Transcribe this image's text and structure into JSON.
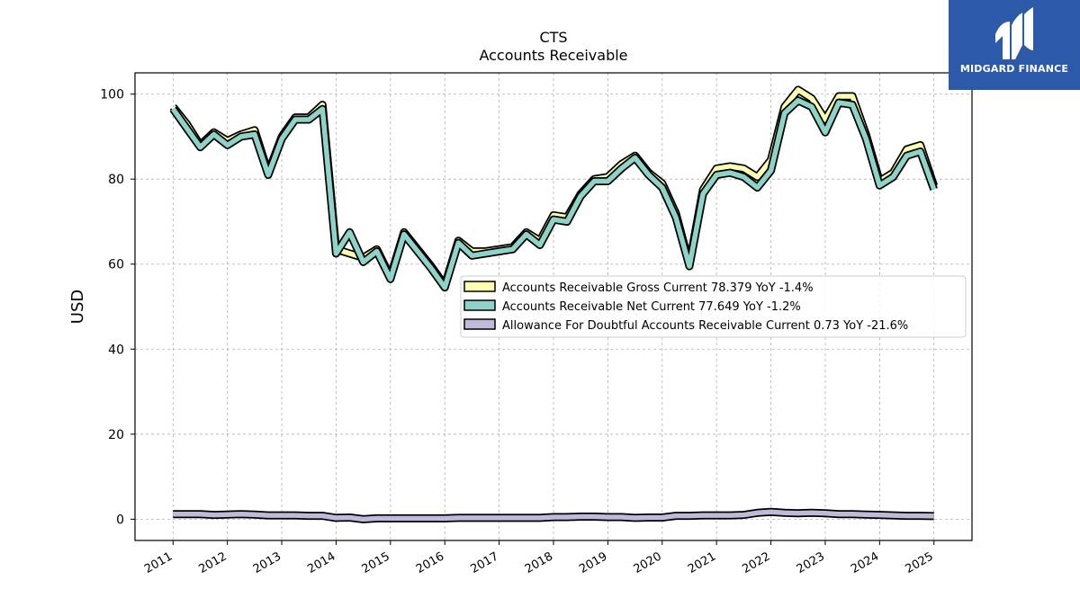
{
  "logo": {
    "name": "MIDGARD FINANCE",
    "bg": "#2c5aa8"
  },
  "chart_data": {
    "type": "line",
    "title": "CTS",
    "subtitle": "Accounts Receivable",
    "ylabel": "USD",
    "xlabel": "",
    "ylim": [
      -5,
      105
    ],
    "yticks": [
      0,
      20,
      40,
      60,
      80,
      100
    ],
    "xlim": [
      2010.3,
      2025.7
    ],
    "xticks": [
      2011,
      2012,
      2013,
      2014,
      2015,
      2016,
      2017,
      2018,
      2019,
      2020,
      2021,
      2022,
      2023,
      2024,
      2025
    ],
    "grid": true,
    "legend_position": "center-right",
    "series": [
      {
        "name": "Accounts Receivable Gross Current  78.379 YoY -1.4%",
        "color": "#ffffb3",
        "x": [
          2011.0,
          2011.25,
          2011.5,
          2011.75,
          2012.0,
          2012.25,
          2012.5,
          2012.75,
          2013.0,
          2013.25,
          2013.5,
          2013.75,
          2014.0,
          2014.25,
          2014.5,
          2014.75,
          2015.0,
          2015.25,
          2015.5,
          2015.75,
          2016.0,
          2016.25,
          2016.5,
          2016.75,
          2017.0,
          2017.25,
          2017.5,
          2017.75,
          2018.0,
          2018.25,
          2018.5,
          2018.75,
          2019.0,
          2019.25,
          2019.5,
          2019.75,
          2020.0,
          2020.25,
          2020.5,
          2020.75,
          2021.0,
          2021.25,
          2021.5,
          2021.75,
          2022.0,
          2022.25,
          2022.5,
          2022.75,
          2023.0,
          2023.25,
          2023.5,
          2023.75,
          2024.0,
          2024.25,
          2024.5,
          2024.75,
          2025.0
        ],
        "values": [
          97,
          93,
          88,
          91,
          89,
          90.5,
          91.5,
          81.5,
          90,
          94.5,
          94.5,
          97.5,
          63.5,
          62.5,
          61.5,
          63.5,
          57,
          67.5,
          63.5,
          59.5,
          55,
          65.5,
          63,
          63,
          63.5,
          64,
          67.5,
          65.5,
          71.5,
          71,
          76.5,
          80,
          80.5,
          83.5,
          85.5,
          81.5,
          79,
          72,
          60,
          77.5,
          82.5,
          83,
          82.5,
          80.5,
          84.5,
          97,
          101,
          99,
          94,
          99.5,
          99.5,
          90.5,
          79.5,
          81.5,
          87,
          88,
          78.4
        ]
      },
      {
        "name": "Accounts Receivable Net Current  77.649 YoY -1.2%",
        "color": "#8dd3c7",
        "x": [
          2011.0,
          2011.25,
          2011.5,
          2011.75,
          2012.0,
          2012.25,
          2012.5,
          2012.75,
          2013.0,
          2013.25,
          2013.5,
          2013.75,
          2014.0,
          2014.25,
          2014.5,
          2014.75,
          2015.0,
          2015.25,
          2015.5,
          2015.75,
          2016.0,
          2016.25,
          2016.5,
          2016.75,
          2017.0,
          2017.25,
          2017.5,
          2017.75,
          2018.0,
          2018.25,
          2018.5,
          2018.75,
          2019.0,
          2019.25,
          2019.5,
          2019.75,
          2020.0,
          2020.25,
          2020.5,
          2020.75,
          2021.0,
          2021.25,
          2021.5,
          2021.75,
          2022.0,
          2022.25,
          2022.5,
          2022.75,
          2023.0,
          2023.25,
          2023.5,
          2023.75,
          2024.0,
          2024.25,
          2024.5,
          2024.75,
          2025.0
        ],
        "values": [
          96.5,
          92,
          87.5,
          90.5,
          88,
          90,
          90.5,
          81,
          89.5,
          94,
          94,
          96.5,
          62.5,
          67.5,
          60.5,
          63,
          56.5,
          67,
          63,
          59,
          54.5,
          65,
          62,
          62.5,
          63,
          63.5,
          67,
          64.5,
          70.5,
          70,
          76,
          79.5,
          79.5,
          82.5,
          85,
          81,
          78,
          71,
          59.5,
          76.5,
          81,
          81.5,
          80.5,
          78,
          82,
          95.5,
          98.5,
          97,
          91,
          98,
          97.5,
          89.5,
          78.5,
          80.5,
          85.5,
          86.5,
          77.6
        ]
      },
      {
        "name": "Allowance For Doubtful Accounts Receivable Current  0.73 YoY -21.6%",
        "color": "#bebada",
        "x": [
          2011.0,
          2011.25,
          2011.5,
          2011.75,
          2012.0,
          2012.25,
          2012.5,
          2012.75,
          2013.0,
          2013.25,
          2013.5,
          2013.75,
          2014.0,
          2014.25,
          2014.5,
          2014.75,
          2015.0,
          2015.25,
          2015.5,
          2015.75,
          2016.0,
          2016.25,
          2016.5,
          2016.75,
          2017.0,
          2017.25,
          2017.5,
          2017.75,
          2018.0,
          2018.25,
          2018.5,
          2018.75,
          2019.0,
          2019.25,
          2019.5,
          2019.75,
          2020.0,
          2020.25,
          2020.5,
          2020.75,
          2021.0,
          2021.25,
          2021.5,
          2021.75,
          2022.0,
          2022.25,
          2022.5,
          2022.75,
          2023.0,
          2023.25,
          2023.5,
          2023.75,
          2024.0,
          2024.25,
          2024.5,
          2024.75,
          2025.0
        ],
        "values": [
          1.2,
          1.2,
          1.2,
          1.0,
          1.1,
          1.2,
          1.1,
          0.9,
          0.9,
          0.9,
          0.8,
          0.8,
          0.3,
          0.4,
          0,
          0.2,
          0.2,
          0.2,
          0.2,
          0.2,
          0.2,
          0.3,
          0.3,
          0.3,
          0.3,
          0.3,
          0.3,
          0.3,
          0.5,
          0.5,
          0.6,
          0.6,
          0.5,
          0.5,
          0.3,
          0.4,
          0.4,
          0.8,
          0.8,
          0.9,
          0.9,
          0.9,
          1.0,
          1.5,
          1.7,
          1.5,
          1.4,
          1.5,
          1.4,
          1.2,
          1.2,
          1.1,
          1.0,
          0.9,
          0.8,
          0.8,
          0.73
        ]
      }
    ]
  }
}
